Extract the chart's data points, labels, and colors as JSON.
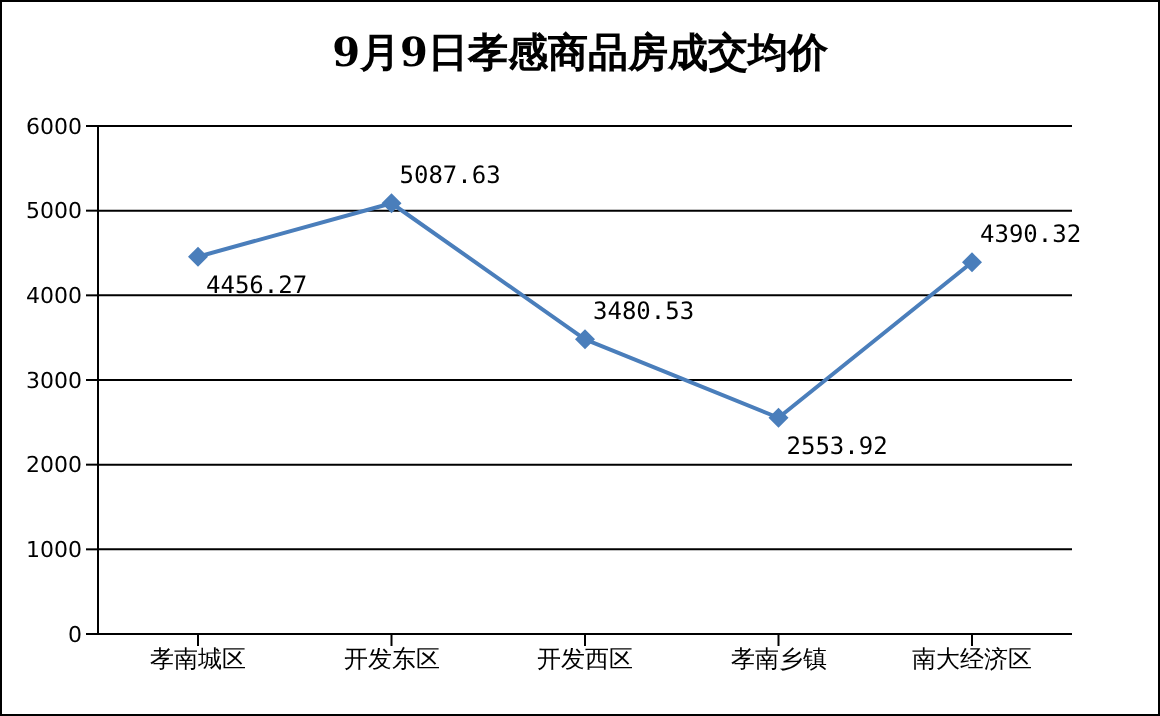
{
  "chart_data": {
    "type": "line",
    "title": "9月9日孝感商品房成交均价",
    "categories": [
      "孝南城区",
      "开发东区",
      "开发西区",
      "孝南乡镇",
      "南大经济区"
    ],
    "series": [
      {
        "color": "#4a7ebb",
        "values": [
          4456.27,
          5087.63,
          3480.53,
          2553.92,
          4390.32
        ]
      }
    ],
    "ylim": [
      0,
      6000
    ],
    "yticks": [
      0,
      1000,
      2000,
      3000,
      4000,
      5000,
      6000
    ],
    "grid": "y",
    "marker": "diamond",
    "line_style": "solid",
    "data_labels": true
  }
}
